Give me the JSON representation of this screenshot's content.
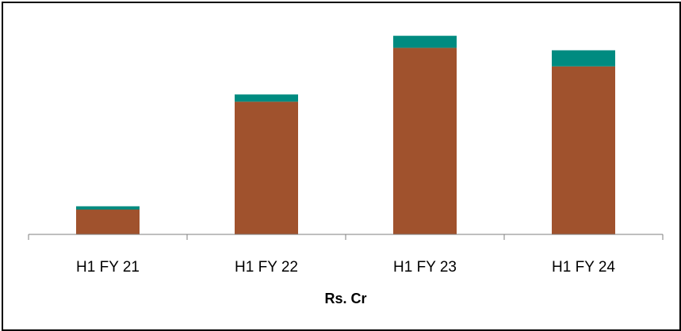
{
  "chart_data": {
    "type": "bar",
    "stacked": true,
    "categories": [
      "H1 FY 21",
      "H1 FY 22",
      "H1 FY 23",
      "H1 FY 24"
    ],
    "series": [
      {
        "values": [
          31,
          165,
          232,
          209
        ],
        "color": "#A0522D"
      },
      {
        "values": [
          4,
          9,
          15,
          20
        ],
        "color": "#008B80"
      }
    ],
    "xlabel": "Rs. Cr",
    "ylabel": "",
    "title": "",
    "ylim": [
      0,
      260
    ],
    "grid": false,
    "legend": "none"
  }
}
